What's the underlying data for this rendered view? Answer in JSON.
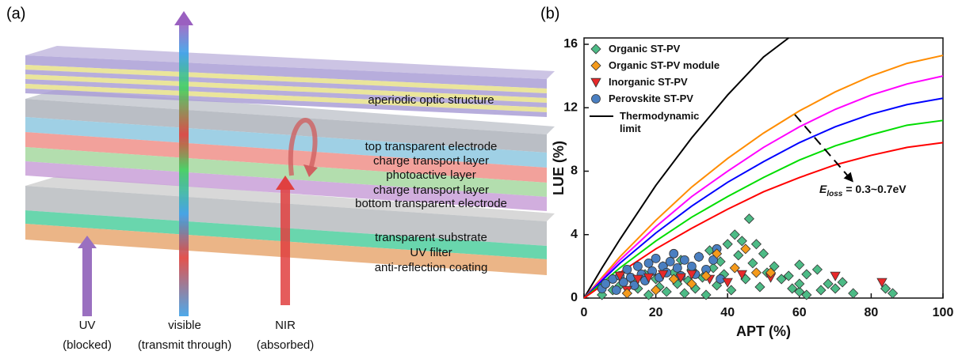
{
  "panel_labels": [
    "(a)",
    "(b)"
  ],
  "diagram": {
    "layers": [
      "aperiodic optic structure",
      "top transparent electrode",
      "charge transport layer",
      "photoactive layer",
      "charge transport layer",
      "bottom transparent electrode",
      "transparent substrate",
      "UV filter",
      "anti-reflection coating"
    ],
    "arrows": [
      {
        "name": "UV",
        "note": "(blocked)"
      },
      {
        "name": "visible",
        "note": "(transmit through)"
      },
      {
        "name": "NIR",
        "note": "(absorbed)"
      }
    ]
  },
  "chart_data": {
    "type": "scatter",
    "x_label": "APT (%)",
    "y_label": "LUE (%)",
    "xlim": [
      0,
      100
    ],
    "ylim": [
      0,
      16.4
    ],
    "xticks": [
      0,
      20,
      40,
      60,
      80,
      100
    ],
    "yticks": [
      0,
      4,
      8,
      12,
      16
    ],
    "legend": "upper left",
    "annotation": {
      "symbol": "E",
      "subscript": "loss",
      "text": "= 0.3~0.7eV"
    },
    "series": [
      {
        "name": "Organic ST-PV",
        "color": "#4dbb86",
        "marker": "diamond",
        "x": [
          5,
          8,
          10,
          12,
          14,
          15,
          17,
          18,
          20,
          21,
          22,
          23,
          25,
          26,
          27,
          28,
          29,
          30,
          31,
          32,
          33,
          34,
          35,
          36,
          37,
          38,
          39,
          40,
          41,
          42,
          43,
          44,
          45,
          46,
          47,
          48,
          49,
          50,
          51,
          53,
          55,
          57,
          58,
          60,
          60,
          62,
          65,
          66,
          68,
          70,
          72,
          75,
          84,
          86,
          60,
          62
        ],
        "values": [
          0.2,
          0.5,
          0.8,
          0.3,
          1.0,
          0.6,
          1.5,
          0.2,
          1.2,
          0.7,
          2.0,
          0.4,
          1.6,
          0.9,
          2.4,
          0.3,
          1.1,
          1.8,
          0.6,
          2.6,
          1.3,
          0.2,
          3.0,
          1.9,
          0.8,
          2.3,
          1.5,
          3.4,
          0.5,
          4.0,
          2.7,
          3.6,
          1.2,
          5.0,
          2.2,
          3.4,
          0.7,
          2.8,
          1.6,
          2.0,
          1.2,
          1.4,
          0.6,
          2.1,
          0.4,
          1.5,
          1.8,
          0.5,
          0.9,
          0.6,
          1.0,
          0.3,
          0.6,
          0.3,
          0.9,
          0.2
        ]
      },
      {
        "name": "Organic ST-PV module",
        "color": "#f59a1b",
        "marker": "diamond",
        "x": [
          37,
          45,
          48,
          52,
          25,
          30,
          20,
          42,
          12,
          34
        ],
        "values": [
          2.8,
          3.1,
          1.6,
          1.6,
          1.2,
          0.9,
          0.5,
          1.9,
          0.3,
          1.4
        ]
      },
      {
        "name": "Inorganic ST-PV",
        "color": "#e8282a",
        "marker": "triangle",
        "x": [
          10,
          15,
          22,
          27,
          35,
          40,
          44,
          52,
          70,
          83,
          18,
          30,
          12
        ],
        "values": [
          1.4,
          1.2,
          1.5,
          1.3,
          1.2,
          1.0,
          1.5,
          1.3,
          1.4,
          1.0,
          1.3,
          1.5,
          0.5
        ]
      },
      {
        "name": "Perovskite ST-PV",
        "color": "#4a7fc1",
        "marker": "circle",
        "x": [
          5,
          6,
          8,
          9,
          10,
          11,
          12,
          13,
          14,
          15,
          16,
          17,
          18,
          19,
          20,
          21,
          22,
          23,
          24,
          25,
          26,
          27,
          28,
          30,
          31,
          32,
          34,
          36,
          37,
          38
        ],
        "values": [
          0.6,
          0.9,
          1.2,
          0.5,
          1.4,
          1.0,
          1.8,
          1.3,
          0.8,
          2.0,
          1.5,
          1.1,
          2.2,
          1.7,
          2.5,
          1.3,
          2.0,
          1.6,
          2.3,
          2.8,
          1.9,
          1.4,
          2.4,
          2.0,
          1.5,
          2.6,
          1.8,
          2.4,
          3.1,
          1.2
        ]
      },
      {
        "name": "Thermodynamic limit",
        "color": "#000000",
        "marker": "line",
        "x": [
          0,
          5,
          10,
          20,
          30,
          40,
          50,
          57
        ],
        "values": [
          0,
          1.9,
          3.7,
          7.1,
          10.1,
          12.8,
          15.2,
          16.4
        ]
      },
      {
        "color": "#ff8c00",
        "marker": "line",
        "x": [
          0,
          10,
          20,
          30,
          40,
          50,
          60,
          70,
          80,
          90,
          100
        ],
        "values": [
          0,
          2.6,
          4.9,
          7,
          8.8,
          10.4,
          11.8,
          13,
          14,
          14.8,
          15.3
        ]
      },
      {
        "color": "#ff00ff",
        "marker": "line",
        "x": [
          0,
          10,
          20,
          30,
          40,
          50,
          60,
          70,
          80,
          90,
          100
        ],
        "values": [
          0,
          2.4,
          4.5,
          6.4,
          8,
          9.5,
          10.8,
          11.9,
          12.8,
          13.5,
          14.0
        ]
      },
      {
        "color": "#0000ff",
        "marker": "line",
        "x": [
          0,
          10,
          20,
          30,
          40,
          50,
          60,
          70,
          80,
          90,
          100
        ],
        "values": [
          0,
          2.2,
          4.1,
          5.8,
          7.3,
          8.6,
          9.8,
          10.8,
          11.6,
          12.2,
          12.6
        ]
      },
      {
        "color": "#00dd00",
        "marker": "line",
        "x": [
          0,
          10,
          20,
          30,
          40,
          50,
          60,
          70,
          80,
          90,
          100
        ],
        "values": [
          0,
          1.9,
          3.6,
          5.1,
          6.4,
          7.6,
          8.7,
          9.6,
          10.3,
          10.9,
          11.2
        ]
      },
      {
        "color": "#ff0000",
        "marker": "line",
        "x": [
          0,
          10,
          20,
          30,
          40,
          50,
          60,
          70,
          80,
          90,
          100
        ],
        "values": [
          0,
          1.6,
          3.1,
          4.4,
          5.6,
          6.7,
          7.6,
          8.4,
          9.0,
          9.5,
          9.8
        ]
      }
    ]
  }
}
